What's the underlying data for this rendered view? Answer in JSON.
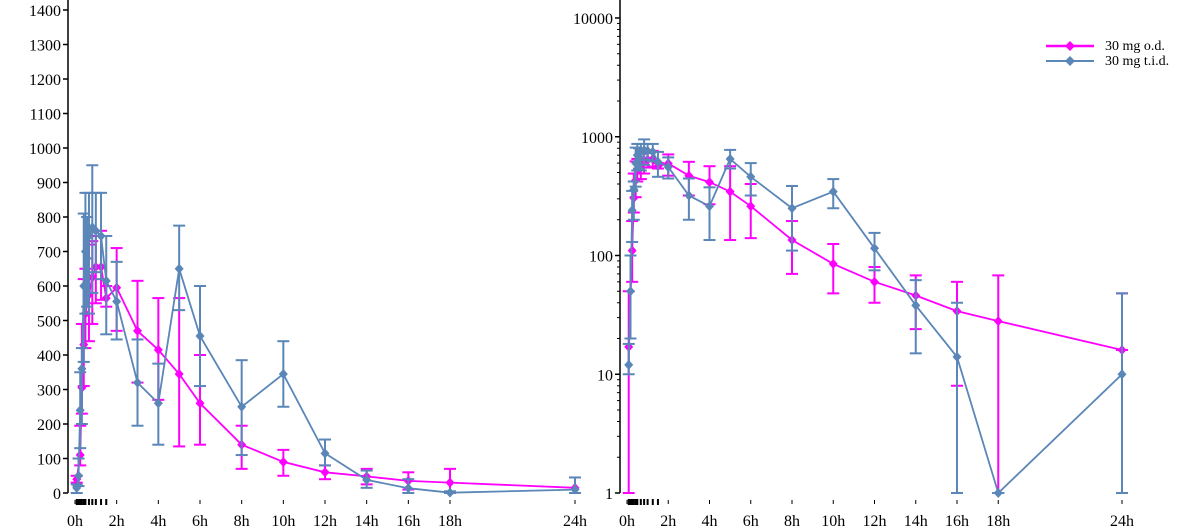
{
  "colors": {
    "series_1": "#ff00ff",
    "series_2": "#5a86b8",
    "axis": "#000000"
  },
  "legend": {
    "position": "top-right of right panel"
  },
  "chart_data": [
    {
      "type": "line",
      "panel": "left",
      "yscale": "linear",
      "ylim": [
        0,
        1400
      ],
      "yticks": [
        0,
        100,
        200,
        300,
        400,
        500,
        600,
        700,
        800,
        900,
        1000,
        1100,
        1200,
        1300,
        1400
      ],
      "ytick_labels": [
        "0",
        "100",
        "200",
        "300",
        "400",
        "500",
        "600",
        "700",
        "800",
        "900",
        "1000",
        "1100",
        "1200",
        "1300",
        "1400"
      ],
      "xlim_hours": [
        0,
        24
      ],
      "xticks_hours": [
        0,
        2,
        4,
        6,
        8,
        10,
        12,
        14,
        16,
        18,
        24
      ],
      "xtick_labels": [
        "0h",
        "2h",
        "4h",
        "6h",
        "8h",
        "10h",
        "12h",
        "14h",
        "16h",
        "18h",
        "24h"
      ],
      "grid": false,
      "series": [
        {
          "name": "30 mg o.d.",
          "points": [
            {
              "x": 0.083,
              "y": 40,
              "lo": 30,
              "hi": 50
            },
            {
              "x": 0.25,
              "y": 110,
              "lo": 80,
              "hi": 195
            },
            {
              "x": 0.33,
              "y": 305,
              "lo": 230,
              "hi": 490
            },
            {
              "x": 0.42,
              "y": 430,
              "lo": 310,
              "hi": 620
            },
            {
              "x": 0.5,
              "y": 520,
              "lo": 420,
              "hi": 650
            },
            {
              "x": 0.67,
              "y": 575,
              "lo": 440,
              "hi": 720
            },
            {
              "x": 0.83,
              "y": 625,
              "lo": 490,
              "hi": 730
            },
            {
              "x": 1,
              "y": 655,
              "lo": 550,
              "hi": 745
            },
            {
              "x": 1.25,
              "y": 655,
              "lo": 560,
              "hi": 760
            },
            {
              "x": 1.5,
              "y": 565,
              "lo": 540,
              "hi": 600
            },
            {
              "x": 2,
              "y": 595,
              "lo": 470,
              "hi": 710
            },
            {
              "x": 3,
              "y": 470,
              "lo": 320,
              "hi": 615
            },
            {
              "x": 4,
              "y": 415,
              "lo": 270,
              "hi": 565
            },
            {
              "x": 5,
              "y": 345,
              "lo": 135,
              "hi": 565
            },
            {
              "x": 6,
              "y": 260,
              "lo": 140,
              "hi": 400
            },
            {
              "x": 8,
              "y": 140,
              "lo": 70,
              "hi": 195
            },
            {
              "x": 10,
              "y": 90,
              "lo": 50,
              "hi": 125
            },
            {
              "x": 12,
              "y": 60,
              "lo": 40,
              "hi": 80
            },
            {
              "x": 14,
              "y": 48,
              "lo": 25,
              "hi": 70
            },
            {
              "x": 16,
              "y": 35,
              "lo": 10,
              "hi": 60
            },
            {
              "x": 18,
              "y": 30,
              "lo": 0,
              "hi": 70
            },
            {
              "x": 24,
              "y": 15,
              "lo": 0,
              "hi": 45
            }
          ]
        },
        {
          "name": "30 mg t.i.d.",
          "points": [
            {
              "x": 0.083,
              "y": 15,
              "lo": 0,
              "hi": 25
            },
            {
              "x": 0.17,
              "y": 50,
              "lo": 20,
              "hi": 100
            },
            {
              "x": 0.25,
              "y": 240,
              "lo": 130,
              "hi": 350
            },
            {
              "x": 0.33,
              "y": 360,
              "lo": 200,
              "hi": 420
            },
            {
              "x": 0.42,
              "y": 600,
              "lo": 380,
              "hi": 810
            },
            {
              "x": 0.5,
              "y": 700,
              "lo": 520,
              "hi": 870
            },
            {
              "x": 0.58,
              "y": 680,
              "lo": 540,
              "hi": 800
            },
            {
              "x": 0.67,
              "y": 745,
              "lo": 520,
              "hi": 870
            },
            {
              "x": 0.83,
              "y": 770,
              "lo": 580,
              "hi": 950
            },
            {
              "x": 1,
              "y": 760,
              "lo": 640,
              "hi": 870
            },
            {
              "x": 1.25,
              "y": 745,
              "lo": 620,
              "hi": 870
            },
            {
              "x": 1.5,
              "y": 615,
              "lo": 460,
              "hi": 745
            },
            {
              "x": 2,
              "y": 555,
              "lo": 445,
              "hi": 670
            },
            {
              "x": 3,
              "y": 320,
              "lo": 195,
              "hi": 445
            },
            {
              "x": 4,
              "y": 260,
              "lo": 140,
              "hi": 375
            },
            {
              "x": 5,
              "y": 650,
              "lo": 530,
              "hi": 775
            },
            {
              "x": 6,
              "y": 455,
              "lo": 310,
              "hi": 600
            },
            {
              "x": 8,
              "y": 250,
              "lo": 110,
              "hi": 385
            },
            {
              "x": 10,
              "y": 345,
              "lo": 250,
              "hi": 440
            },
            {
              "x": 12,
              "y": 115,
              "lo": 80,
              "hi": 155
            },
            {
              "x": 14,
              "y": 38,
              "lo": 15,
              "hi": 65
            },
            {
              "x": 16,
              "y": 14,
              "lo": 0,
              "hi": 40
            },
            {
              "x": 18,
              "y": 1,
              "lo": 0,
              "hi": 5
            },
            {
              "x": 24,
              "y": 10,
              "lo": 0,
              "hi": 45
            }
          ]
        }
      ]
    },
    {
      "type": "line",
      "panel": "right",
      "yscale": "log",
      "ylim": [
        1,
        10000
      ],
      "yticks": [
        1,
        10,
        100,
        1000,
        10000
      ],
      "ytick_labels": [
        "1",
        "10",
        "100",
        "1000",
        "10000"
      ],
      "xlim_hours": [
        0,
        24
      ],
      "xticks_hours": [
        0,
        2,
        4,
        6,
        8,
        10,
        12,
        14,
        16,
        18,
        24
      ],
      "xtick_labels": [
        "0h",
        "2h",
        "4h",
        "6h",
        "8h",
        "10h",
        "12h",
        "14h",
        "16h",
        "18h",
        "24h"
      ],
      "grid": false,
      "series": [
        {
          "name": "30 mg o.d.",
          "points": [
            {
              "x": 0.083,
              "y": 17,
              "lo": 1,
              "hi": 50
            },
            {
              "x": 0.25,
              "y": 110,
              "lo": 60,
              "hi": 195
            },
            {
              "x": 0.33,
              "y": 305,
              "lo": 230,
              "hi": 490
            },
            {
              "x": 0.42,
              "y": 430,
              "lo": 310,
              "hi": 620
            },
            {
              "x": 0.5,
              "y": 520,
              "lo": 420,
              "hi": 650
            },
            {
              "x": 0.67,
              "y": 575,
              "lo": 440,
              "hi": 720
            },
            {
              "x": 0.83,
              "y": 625,
              "lo": 490,
              "hi": 730
            },
            {
              "x": 1,
              "y": 640,
              "lo": 550,
              "hi": 745
            },
            {
              "x": 1.25,
              "y": 650,
              "lo": 560,
              "hi": 760
            },
            {
              "x": 1.5,
              "y": 565,
              "lo": 540,
              "hi": 600
            },
            {
              "x": 2,
              "y": 595,
              "lo": 470,
              "hi": 710
            },
            {
              "x": 3,
              "y": 470,
              "lo": 320,
              "hi": 615
            },
            {
              "x": 4,
              "y": 415,
              "lo": 270,
              "hi": 565
            },
            {
              "x": 5,
              "y": 345,
              "lo": 135,
              "hi": 565
            },
            {
              "x": 6,
              "y": 260,
              "lo": 140,
              "hi": 400
            },
            {
              "x": 8,
              "y": 135,
              "lo": 70,
              "hi": 195
            },
            {
              "x": 10,
              "y": 85,
              "lo": 48,
              "hi": 125
            },
            {
              "x": 12,
              "y": 60,
              "lo": 40,
              "hi": 80
            },
            {
              "x": 14,
              "y": 46,
              "lo": 24,
              "hi": 68
            },
            {
              "x": 16,
              "y": 34,
              "lo": 8,
              "hi": 60
            },
            {
              "x": 18,
              "y": 28,
              "lo": 1,
              "hi": 68
            },
            {
              "x": 24,
              "y": 16,
              "lo": 16,
              "hi": 48
            }
          ]
        },
        {
          "name": "30 mg t.i.d.",
          "points": [
            {
              "x": 0.083,
              "y": 12,
              "lo": 10,
              "hi": 18
            },
            {
              "x": 0.17,
              "y": 50,
              "lo": 20,
              "hi": 100
            },
            {
              "x": 0.25,
              "y": 240,
              "lo": 130,
              "hi": 350
            },
            {
              "x": 0.33,
              "y": 360,
              "lo": 200,
              "hi": 420
            },
            {
              "x": 0.42,
              "y": 600,
              "lo": 380,
              "hi": 810
            },
            {
              "x": 0.5,
              "y": 700,
              "lo": 520,
              "hi": 870
            },
            {
              "x": 0.58,
              "y": 680,
              "lo": 540,
              "hi": 800
            },
            {
              "x": 0.67,
              "y": 745,
              "lo": 520,
              "hi": 870
            },
            {
              "x": 0.83,
              "y": 770,
              "lo": 580,
              "hi": 950
            },
            {
              "x": 1,
              "y": 760,
              "lo": 640,
              "hi": 870
            },
            {
              "x": 1.25,
              "y": 745,
              "lo": 620,
              "hi": 870
            },
            {
              "x": 1.5,
              "y": 615,
              "lo": 460,
              "hi": 745
            },
            {
              "x": 2,
              "y": 555,
              "lo": 445,
              "hi": 670
            },
            {
              "x": 3,
              "y": 320,
              "lo": 200,
              "hi": 445
            },
            {
              "x": 4,
              "y": 260,
              "lo": 135,
              "hi": 375
            },
            {
              "x": 5,
              "y": 650,
              "lo": 540,
              "hi": 775
            },
            {
              "x": 6,
              "y": 460,
              "lo": 320,
              "hi": 600
            },
            {
              "x": 8,
              "y": 250,
              "lo": 110,
              "hi": 385
            },
            {
              "x": 10,
              "y": 345,
              "lo": 250,
              "hi": 440
            },
            {
              "x": 12,
              "y": 115,
              "lo": 75,
              "hi": 155
            },
            {
              "x": 14,
              "y": 38,
              "lo": 15,
              "hi": 62
            },
            {
              "x": 16,
              "y": 14,
              "lo": 1,
              "hi": 40
            },
            {
              "x": 18,
              "y": 1,
              "lo": 1,
              "hi": 1
            },
            {
              "x": 24,
              "y": 10,
              "lo": 1,
              "hi": 48
            }
          ]
        }
      ]
    }
  ]
}
